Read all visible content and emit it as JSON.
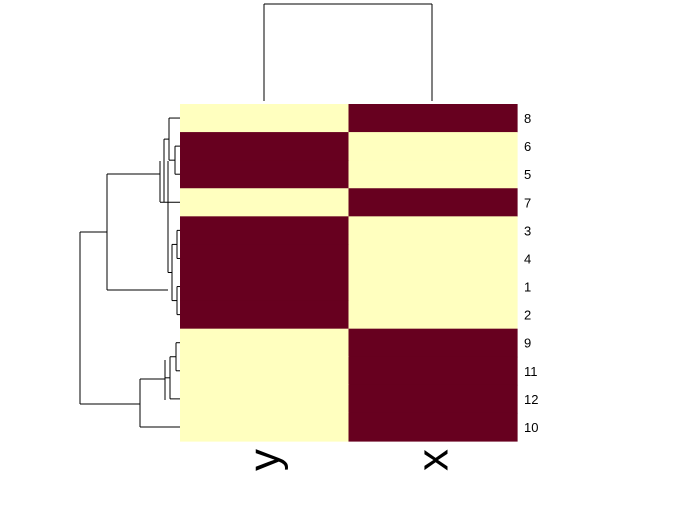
{
  "chart_data": {
    "type": "heatmap",
    "columns": [
      "y",
      "x"
    ],
    "rows": [
      "8",
      "6",
      "5",
      "7",
      "3",
      "4",
      "1",
      "2",
      "9",
      "11",
      "12",
      "10"
    ],
    "values": [
      [
        0,
        1
      ],
      [
        1,
        0
      ],
      [
        1,
        0
      ],
      [
        0,
        1
      ],
      [
        1,
        0
      ],
      [
        1,
        0
      ],
      [
        1,
        0
      ],
      [
        1,
        0
      ],
      [
        0,
        1
      ],
      [
        0,
        1
      ],
      [
        0,
        1
      ],
      [
        0,
        1
      ]
    ],
    "colors": {
      "low": "#FFFFBF",
      "high": "#67001F"
    },
    "row_dendrogram": true,
    "column_dendrogram": true,
    "legend": "none"
  }
}
